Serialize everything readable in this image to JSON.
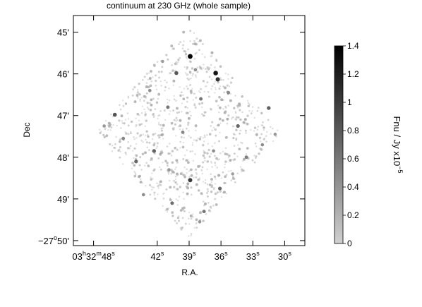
{
  "chart_data": {
    "type": "heatmap",
    "title": "continuum at 230 GHz (whole sample)",
    "xlabel": "R.A.",
    "ylabel": "Dec",
    "x_ticks": [
      {
        "value_sec": 48,
        "label_parts": [
          [
            "03",
            "n"
          ],
          [
            "h",
            "s"
          ],
          [
            "32",
            "n"
          ],
          [
            "m",
            "s"
          ],
          [
            "48",
            "n"
          ],
          [
            "s",
            "s"
          ]
        ]
      },
      {
        "value_sec": 42,
        "label_parts": [
          [
            "42",
            "n"
          ],
          [
            "s",
            "s"
          ]
        ]
      },
      {
        "value_sec": 39,
        "label_parts": [
          [
            "39",
            "n"
          ],
          [
            "s",
            "s"
          ]
        ]
      },
      {
        "value_sec": 36,
        "label_parts": [
          [
            "36",
            "n"
          ],
          [
            "s",
            "s"
          ]
        ]
      },
      {
        "value_sec": 33,
        "label_parts": [
          [
            "33",
            "n"
          ],
          [
            "s",
            "s"
          ]
        ]
      },
      {
        "value_sec": 30,
        "label_parts": [
          [
            "30",
            "n"
          ],
          [
            "s",
            "s"
          ]
        ]
      }
    ],
    "y_ticks": [
      {
        "value_arcmin": 45,
        "label_parts": [
          [
            "45'",
            "n"
          ]
        ]
      },
      {
        "value_arcmin": 46,
        "label_parts": [
          [
            "46'",
            "n"
          ]
        ]
      },
      {
        "value_arcmin": 47,
        "label_parts": [
          [
            "47'",
            "n"
          ]
        ]
      },
      {
        "value_arcmin": 48,
        "label_parts": [
          [
            "48'",
            "n"
          ]
        ]
      },
      {
        "value_arcmin": 49,
        "label_parts": [
          [
            "49'",
            "n"
          ]
        ]
      },
      {
        "value_arcmin": 50,
        "label_parts": [
          [
            "−27",
            "n"
          ],
          [
            "o",
            "s"
          ],
          [
            "50'",
            "n"
          ]
        ]
      }
    ],
    "xlim_sec": [
      49.9,
      28.1
    ],
    "ylim_arcmin": [
      44.6,
      50.12
    ],
    "colorbar": {
      "label_main": "Fnu / Jy  x10",
      "label_exp": "−5",
      "range": [
        0,
        1.4
      ],
      "ticks": [
        {
          "value": 0,
          "label": "0"
        },
        {
          "value": 0.2,
          "label": "0.2"
        },
        {
          "value": 0.4,
          "label": "0.4"
        },
        {
          "value": 0.6,
          "label": "0.6"
        },
        {
          "value": 0.8,
          "label": "0.8"
        },
        {
          "value": 1,
          "label": "1"
        },
        {
          "value": 1.2,
          "label": "1.2"
        },
        {
          "value": 1.4,
          "label": "1.4"
        }
      ],
      "colors": [
        "#d0d0d0",
        "#000000"
      ]
    },
    "field_footprint": [
      [
        39.0,
        44.85
      ],
      [
        47.9,
        47.4
      ],
      [
        39.0,
        49.95
      ],
      [
        30.3,
        47.4
      ]
    ],
    "bright_sources": [
      {
        "ra_sec": 38.9,
        "dec_arcmin": 45.58,
        "flux": 1.35
      },
      {
        "ra_sec": 36.5,
        "dec_arcmin": 45.98,
        "flux": 1.25
      },
      {
        "ra_sec": 36.3,
        "dec_arcmin": 46.13,
        "flux": 1.05
      },
      {
        "ra_sec": 38.9,
        "dec_arcmin": 48.55,
        "flux": 1.0
      },
      {
        "ra_sec": 46.0,
        "dec_arcmin": 46.98,
        "flux": 0.85
      },
      {
        "ra_sec": 40.2,
        "dec_arcmin": 45.98,
        "flux": 0.8
      },
      {
        "ra_sec": 31.5,
        "dec_arcmin": 46.82,
        "flux": 0.75
      },
      {
        "ra_sec": 42.3,
        "dec_arcmin": 47.85,
        "flux": 0.75
      },
      {
        "ra_sec": 34.4,
        "dec_arcmin": 47.25,
        "flux": 0.7
      },
      {
        "ra_sec": 44.0,
        "dec_arcmin": 48.1,
        "flux": 0.7
      },
      {
        "ra_sec": 36.1,
        "dec_arcmin": 48.75,
        "flux": 0.7
      },
      {
        "ra_sec": 40.6,
        "dec_arcmin": 49.1,
        "flux": 0.65
      },
      {
        "ra_sec": 37.6,
        "dec_arcmin": 49.3,
        "flux": 0.6
      },
      {
        "ra_sec": 41.0,
        "dec_arcmin": 46.8,
        "flux": 0.6
      },
      {
        "ra_sec": 37.9,
        "dec_arcmin": 46.6,
        "flux": 0.6
      },
      {
        "ra_sec": 33.6,
        "dec_arcmin": 48.0,
        "flux": 0.55
      },
      {
        "ra_sec": 45.2,
        "dec_arcmin": 47.55,
        "flux": 0.5
      },
      {
        "ra_sec": 35.3,
        "dec_arcmin": 46.45,
        "flux": 0.5
      },
      {
        "ra_sec": 39.6,
        "dec_arcmin": 47.4,
        "flux": 0.5
      },
      {
        "ra_sec": 42.7,
        "dec_arcmin": 46.4,
        "flux": 0.45
      },
      {
        "ra_sec": 32.1,
        "dec_arcmin": 47.7,
        "flux": 0.45
      },
      {
        "ra_sec": 43.3,
        "dec_arcmin": 48.9,
        "flux": 0.45
      },
      {
        "ra_sec": 38.4,
        "dec_arcmin": 45.9,
        "flux": 0.45
      },
      {
        "ra_sec": 36.7,
        "dec_arcmin": 47.85,
        "flux": 0.45
      },
      {
        "ra_sec": 40.9,
        "dec_arcmin": 48.3,
        "flux": 0.4
      },
      {
        "ra_sec": 47.0,
        "dec_arcmin": 47.25,
        "flux": 0.4
      },
      {
        "ra_sec": 30.9,
        "dec_arcmin": 47.45,
        "flux": 0.4
      },
      {
        "ra_sec": 38.0,
        "dec_arcmin": 49.55,
        "flux": 0.4
      },
      {
        "ra_sec": 41.5,
        "dec_arcmin": 45.7,
        "flux": 0.35
      },
      {
        "ra_sec": 34.9,
        "dec_arcmin": 48.4,
        "flux": 0.35
      }
    ],
    "faint_source_count": 900,
    "faint_flux_range": [
      0.03,
      0.3
    ]
  }
}
